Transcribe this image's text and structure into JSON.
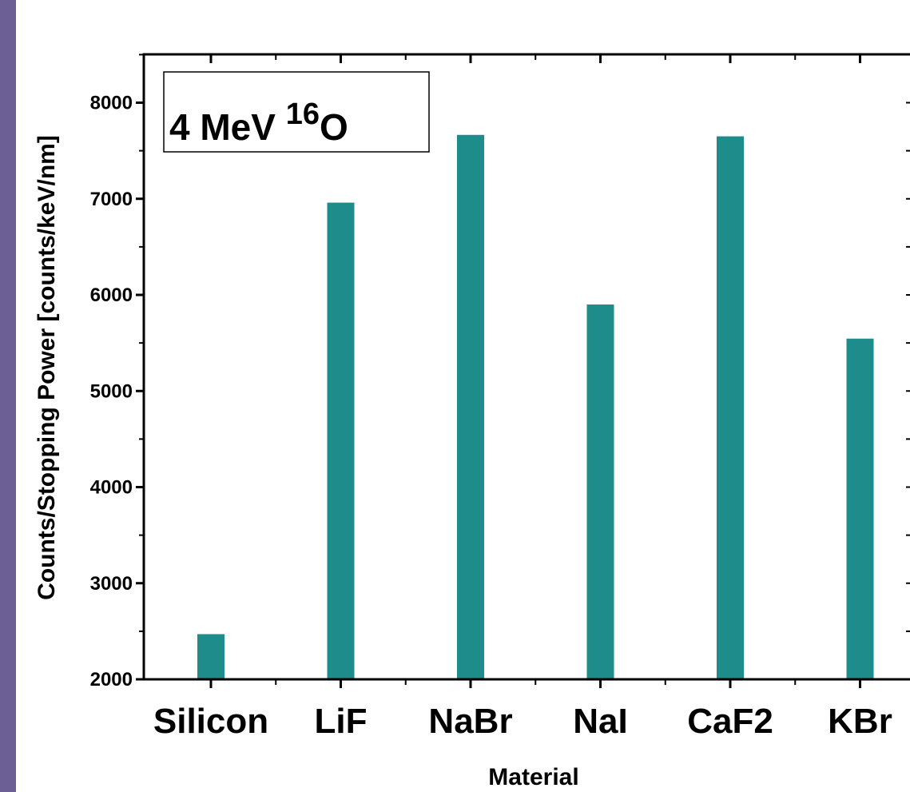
{
  "colors": {
    "bar": "#1e8c8a",
    "axis": "#000000",
    "left_strip": "#6b5f95",
    "background": "#ffffff"
  },
  "chart_data": {
    "type": "bar",
    "categories": [
      "Silicon",
      "LiF",
      "NaBr",
      "NaI",
      "CaF2",
      "KBr"
    ],
    "series": [
      {
        "values": [
          2470,
          6960,
          7665,
          5900,
          7650,
          5545
        ]
      }
    ],
    "xlabel": "Material",
    "ylabel": "Counts/Stopping Power [counts/keV/nm]",
    "ylim": [
      2000,
      8600
    ],
    "yticks": [
      2000,
      3000,
      4000,
      5000,
      6000,
      7000,
      8000
    ],
    "ytick_labels": [
      "2000",
      "3000",
      "4000",
      "5000",
      "6000",
      "7000",
      "8000"
    ],
    "annotation": {
      "main": "4 MeV ",
      "superscript": "16",
      "element": "O"
    },
    "grid": false,
    "legend": "none"
  }
}
